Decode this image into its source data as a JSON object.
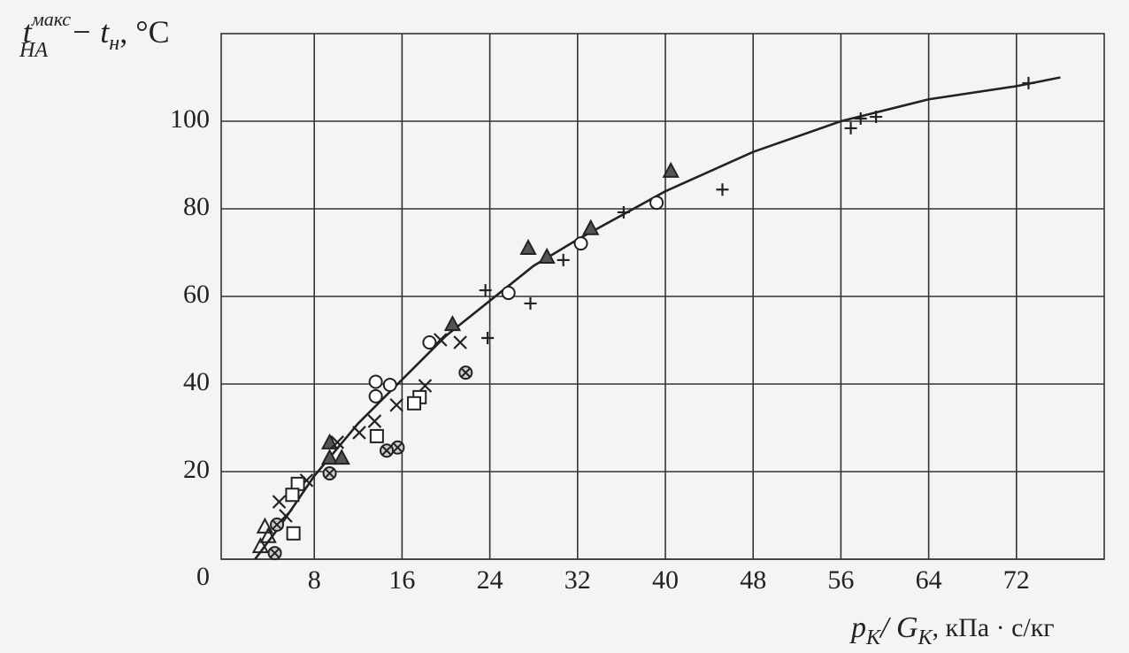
{
  "chart_data": {
    "type": "scatter",
    "y_label": {
      "main": "t",
      "sup": "макс",
      "sub": "НА",
      "rest": "− t",
      "rest_sub": "н",
      "unit": ", °C"
    },
    "x_label": {
      "p": "p",
      "p_sub": "K",
      "g": "/ G",
      "g_sub": "K",
      "unit": ", кПа · с/кг"
    },
    "xlim": [
      0,
      80
    ],
    "ylim": [
      0,
      120
    ],
    "xticks": [
      8,
      16,
      24,
      32,
      40,
      48,
      56,
      64,
      72
    ],
    "yticks": [
      0,
      20,
      40,
      60,
      80,
      100
    ],
    "grid": true,
    "color": "#222222",
    "series": [
      {
        "marker": "plus",
        "x": [
          73.1,
          56.9,
          57.8,
          59.2,
          45.2,
          36.2,
          30.7,
          27.7,
          23.6,
          23.8
        ],
        "values": [
          108.7,
          98.4,
          100.6,
          101,
          84.4,
          79.2,
          68.3,
          58.4,
          61.4,
          50.5
        ]
      },
      {
        "marker": "circle",
        "x": [
          25.7,
          32.3,
          39.2,
          18.5,
          13.6,
          14.9,
          13.6
        ],
        "values": [
          60.8,
          72.1,
          81.4,
          49.5,
          37.2,
          39.8,
          40.5
        ]
      },
      {
        "marker": "filled-triangle",
        "x": [
          27.5,
          29.2,
          33.2,
          40.5,
          20.6,
          9.4,
          9.4,
          10.5
        ],
        "values": [
          71.1,
          69.1,
          75.6,
          88.7,
          53.7,
          26.7,
          23.2,
          23.2
        ]
      },
      {
        "marker": "cross",
        "x": [
          19.5,
          21.3,
          18.1,
          15.5,
          13.5,
          12.1,
          10.1,
          7.3,
          4.8,
          5.4
        ],
        "values": [
          50.1,
          49.5,
          39.6,
          35.2,
          31.5,
          28.9,
          26.7,
          18,
          13.1,
          9.9
        ]
      },
      {
        "marker": "circle-cross",
        "x": [
          21.8,
          15.6,
          14.6,
          9.4,
          4.6,
          4.4
        ],
        "values": [
          42.6,
          25.5,
          24.8,
          19.6,
          7.9,
          1.4
        ]
      },
      {
        "marker": "square",
        "x": [
          17.6,
          17.1,
          13.7,
          6.5,
          6,
          6.1
        ],
        "values": [
          37,
          35.6,
          28.1,
          17.2,
          14.7,
          5.9
        ]
      },
      {
        "marker": "triangle",
        "x": [
          3.1,
          3.8,
          3.5
        ],
        "values": [
          3,
          5.3,
          7.5
        ]
      }
    ],
    "curve": {
      "x": [
        2.6,
        5,
        8,
        12,
        16,
        20,
        24,
        28,
        32,
        40,
        48,
        56,
        64,
        72,
        76
      ],
      "values": [
        0,
        8,
        19,
        31,
        41,
        51,
        59,
        67,
        73,
        84,
        93,
        100,
        105,
        108,
        110
      ]
    }
  }
}
